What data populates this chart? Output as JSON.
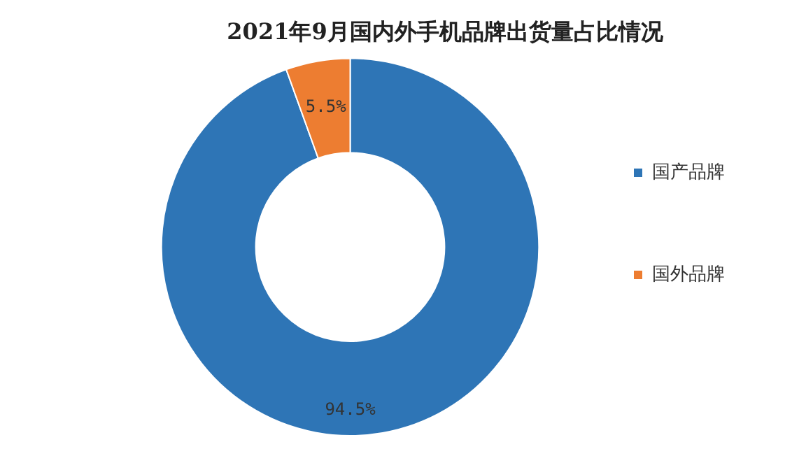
{
  "chart_data": {
    "type": "donut",
    "title": "2021年9月国内外手机品牌出货量占比情况",
    "categories": [
      "国产品牌",
      "国外品牌"
    ],
    "values": [
      94.5,
      5.5
    ],
    "value_labels": [
      "94.5%",
      "5.5%"
    ],
    "colors": [
      "#2e75b6",
      "#ed7d31"
    ],
    "legend": "right"
  }
}
